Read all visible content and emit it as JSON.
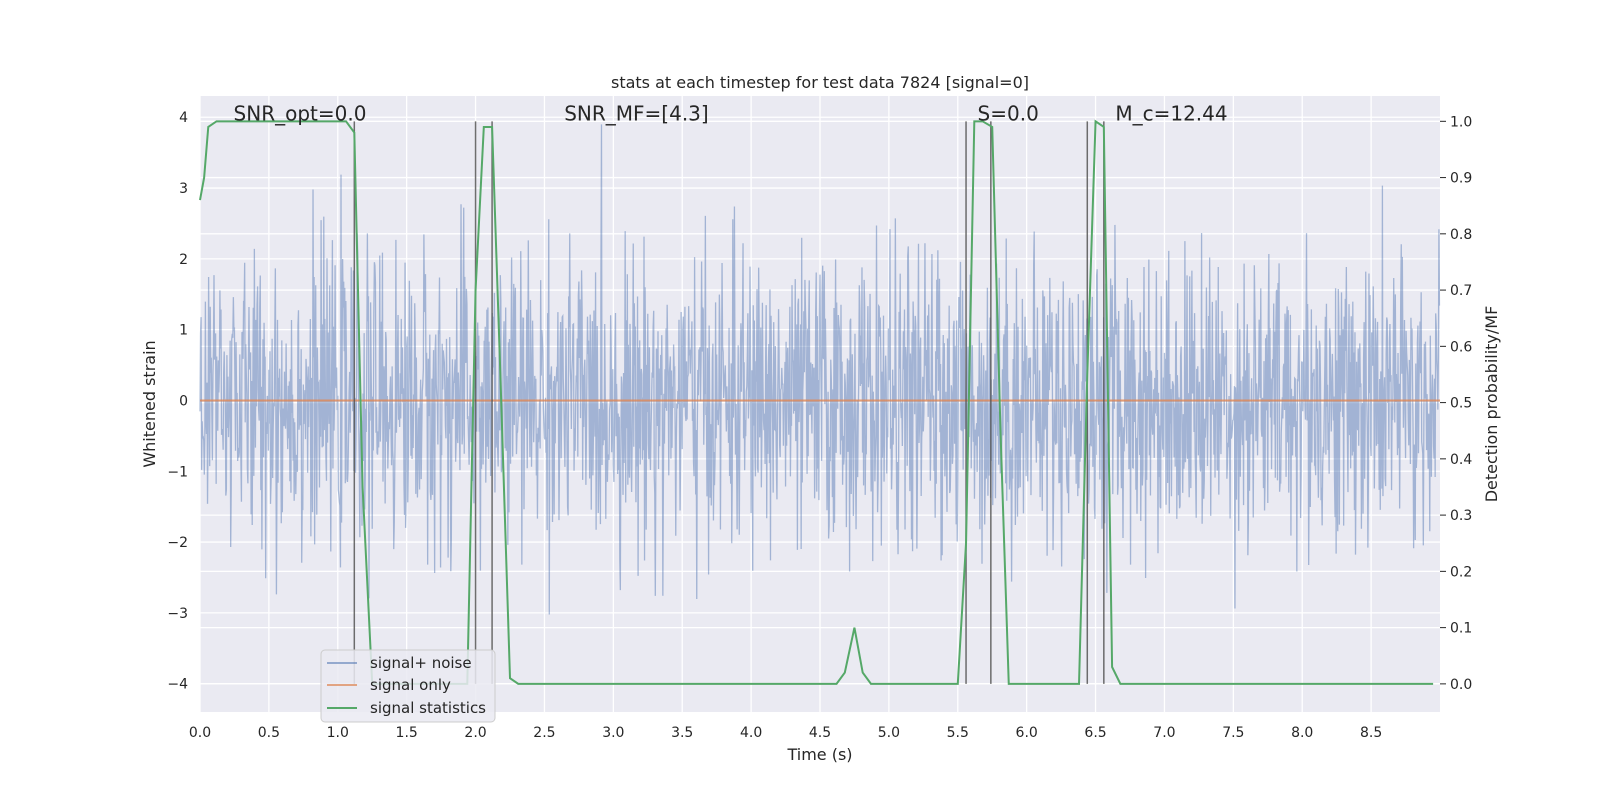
{
  "chart_data": {
    "type": "line",
    "title": "stats at each timestep for test data 7824 [signal=0]",
    "xlabel": "Time (s)",
    "ylabel": "Whitened strain",
    "y2label": "Detection probability/MF",
    "xlim": [
      0.0,
      9.0
    ],
    "ylim": [
      -4.4,
      4.3
    ],
    "y2lim": [
      -0.05,
      1.045
    ],
    "xticks": [
      0.0,
      0.5,
      1.0,
      1.5,
      2.0,
      2.5,
      3.0,
      3.5,
      4.0,
      4.5,
      5.0,
      5.5,
      6.0,
      6.5,
      7.0,
      7.5,
      8.0,
      8.5
    ],
    "xtick_labels": [
      "0.0",
      "0.5",
      "1.0",
      "1.5",
      "2.0",
      "2.5",
      "3.0",
      "3.5",
      "4.0",
      "4.5",
      "5.0",
      "5.5",
      "6.0",
      "6.5",
      "7.0",
      "7.5",
      "8.0",
      "8.5"
    ],
    "yticks": [
      -4,
      -3,
      -2,
      -1,
      0,
      1,
      2,
      3,
      4
    ],
    "ytick_labels": [
      "−4",
      "−3",
      "−2",
      "−1",
      "0",
      "1",
      "2",
      "3",
      "4"
    ],
    "y2ticks": [
      0.0,
      0.1,
      0.2,
      0.3,
      0.4,
      0.5,
      0.6,
      0.7,
      0.8,
      0.9,
      1.0
    ],
    "y2tick_labels": [
      "0.0",
      "0.1",
      "0.2",
      "0.3",
      "0.4",
      "0.5",
      "0.6",
      "0.7",
      "0.8",
      "0.9",
      "1.0"
    ],
    "grid": true,
    "legend_position": "lower-left",
    "annotations": [
      {
        "text": "SNR_opt=0.0",
        "x": 0.2,
        "y": 4.05
      },
      {
        "text": "SNR_MF=[4.3]",
        "x": 2.6,
        "y": 4.05
      },
      {
        "text": "S=0.0",
        "x": 5.6,
        "y": 4.05
      },
      {
        "text": "M_c=12.44",
        "x": 6.6,
        "y": 4.05
      }
    ],
    "vertical_lines": [
      1.12,
      2.0,
      2.12,
      5.56,
      5.74,
      6.44,
      6.56
    ],
    "series": [
      {
        "name": "signal+ noise",
        "axis": "left",
        "color": "#4c72b0",
        "style": "noise",
        "duration": 9.0,
        "samples": 2304,
        "amplitude_rms": 1.0,
        "range": [
          -3.8,
          3.9
        ]
      },
      {
        "name": "signal only",
        "axis": "left",
        "color": "#dd8452",
        "x": [
          0.0,
          9.0
        ],
        "y": [
          0.0,
          0.0
        ]
      },
      {
        "name": "signal statistics",
        "axis": "right",
        "color": "#55a868",
        "x": [
          0.0,
          0.03,
          0.06,
          0.12,
          0.2,
          0.4,
          0.6,
          0.8,
          1.0,
          1.06,
          1.12,
          1.18,
          1.25,
          1.4,
          1.6,
          1.8,
          1.94,
          2.0,
          2.06,
          2.12,
          2.18,
          2.25,
          2.31,
          2.5,
          3.0,
          3.5,
          4.0,
          4.5,
          4.62,
          4.68,
          4.75,
          4.81,
          4.87,
          5.0,
          5.5,
          5.56,
          5.62,
          5.68,
          5.75,
          5.81,
          5.87,
          6.0,
          6.2,
          6.38,
          6.44,
          6.5,
          6.56,
          6.62,
          6.68,
          6.75,
          7.0,
          7.5,
          8.0,
          8.5,
          8.95
        ],
        "y": [
          0.86,
          0.9,
          0.99,
          1.0,
          1.0,
          1.0,
          1.0,
          1.0,
          1.0,
          1.0,
          0.98,
          0.35,
          0.0,
          0.0,
          0.0,
          0.0,
          0.0,
          0.7,
          0.99,
          0.99,
          0.55,
          0.01,
          0.0,
          0.0,
          0.0,
          0.0,
          0.0,
          0.0,
          0.0,
          0.02,
          0.1,
          0.02,
          0.0,
          0.0,
          0.0,
          0.25,
          1.0,
          1.0,
          0.99,
          0.45,
          0.0,
          0.0,
          0.0,
          0.0,
          0.55,
          1.0,
          0.99,
          0.03,
          0.0,
          0.0,
          0.0,
          0.0,
          0.0,
          0.0,
          0.0
        ]
      }
    ]
  }
}
